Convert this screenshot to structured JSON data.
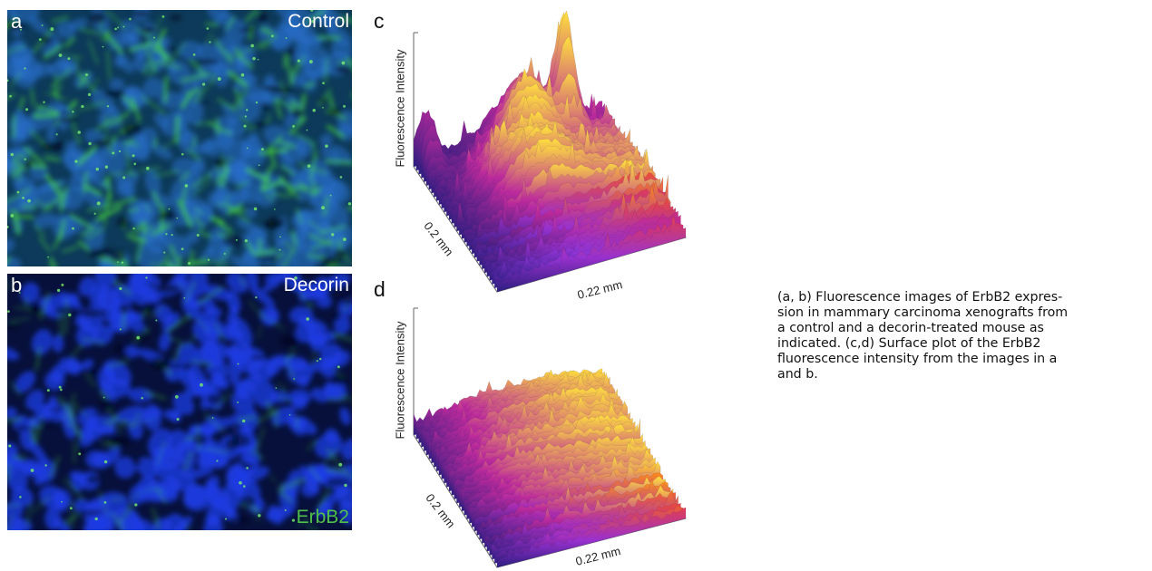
{
  "panels": {
    "a": {
      "letter": "a",
      "label": "Control"
    },
    "b": {
      "letter": "b",
      "label": "Decorin",
      "stain": "ErbB2"
    },
    "c": {
      "letter": "c",
      "zlabel": "Fluorescence Intensity",
      "ylabel": "0.2 mm",
      "xlabel": "0.22 mm"
    },
    "d": {
      "letter": "d",
      "zlabel": "Fluorescence Intensity",
      "ylabel": "0.2 mm",
      "xlabel": "0.22 mm"
    }
  },
  "colors": {
    "nuclei_blue": "#1f3bd6",
    "erbb2_green": "#3fbf3a",
    "surface_low": "#2a1f8a",
    "surface_mid": "#8a35d8",
    "surface_high": "#ffb010"
  },
  "caption": "(a, b) Fluorescence images of ErbB2 expres-\nsion in mammary carcinoma xenografts from\na control and a decorin-treated mouse as\nindicated.  (c,d) Surface plot of the ErbB2\nfluorescence intensity from the images in a\nand b."
}
